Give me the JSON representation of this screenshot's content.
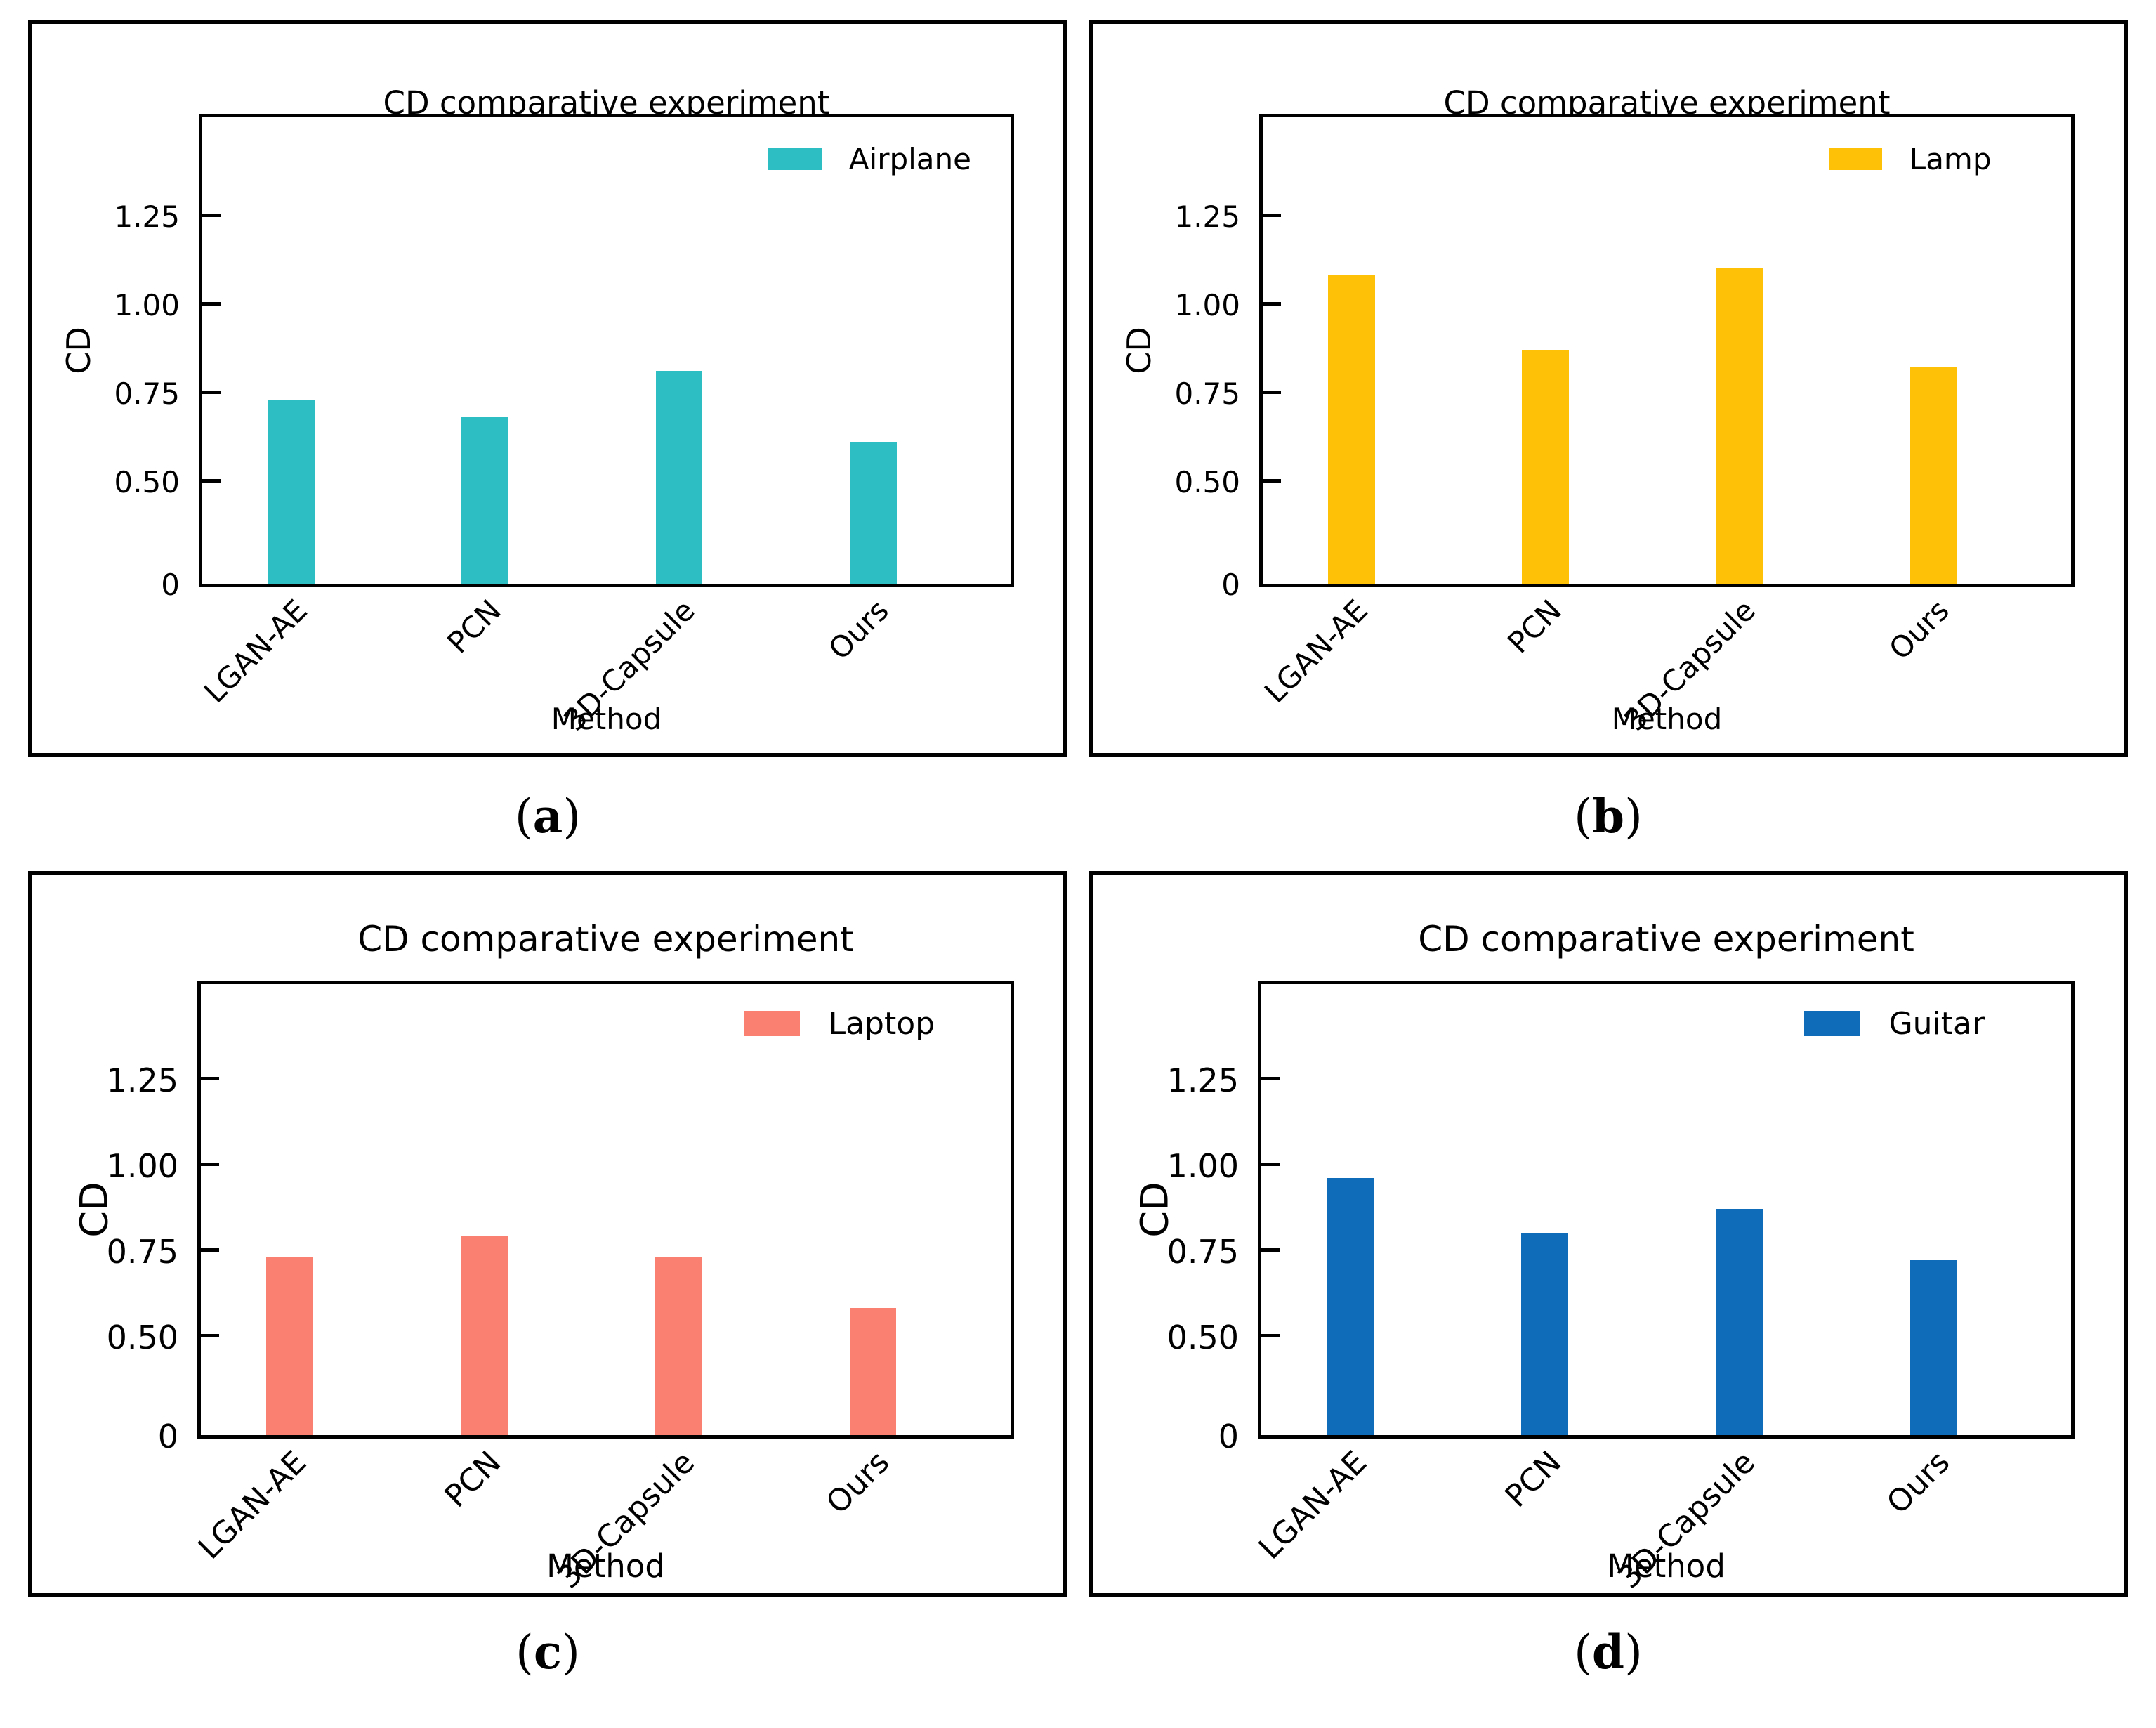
{
  "figure": {
    "caption_open": "(",
    "caption_close": ")"
  },
  "chart_data": [
    {
      "type": "bar",
      "title": "CD comparative experiment",
      "xlabel": "Method",
      "ylabel": "CD",
      "categories": [
        "LGAN-AE",
        "PCN",
        "3D-Capsule",
        "Ours"
      ],
      "values": [
        0.73,
        0.68,
        0.81,
        0.61
      ],
      "legend": "Airplane",
      "bar_color": "#2CBEC3",
      "yticks": [
        {
          "label": "0",
          "value": 0
        },
        {
          "label": "0.50",
          "value": 0.5
        },
        {
          "label": "0.75",
          "value": 0.75
        },
        {
          "label": "1.00",
          "value": 1.0
        },
        {
          "label": "1.25",
          "value": 1.25
        }
      ],
      "ylim": [
        0,
        1.5
      ],
      "legend_position": "upper right",
      "grid": false,
      "caption": "a"
    },
    {
      "type": "bar",
      "title": "CD comparative experiment",
      "xlabel": "Method",
      "ylabel": "CD",
      "categories": [
        "LGAN-AE",
        "PCN",
        "3D-Capsule",
        "Ours"
      ],
      "values": [
        1.08,
        0.87,
        1.1,
        0.82
      ],
      "legend": "Lamp",
      "bar_color": "#FFC107",
      "yticks": [
        {
          "label": "0",
          "value": 0
        },
        {
          "label": "0.50",
          "value": 0.5
        },
        {
          "label": "0.75",
          "value": 0.75
        },
        {
          "label": "1.00",
          "value": 1.0
        },
        {
          "label": "1.25",
          "value": 1.25
        }
      ],
      "ylim": [
        0,
        1.5
      ],
      "legend_position": "upper right",
      "grid": false,
      "caption": "b"
    },
    {
      "type": "bar",
      "title": "CD comparative experiment",
      "xlabel": "Method",
      "ylabel": "CD",
      "categories": [
        "LGAN-AE",
        "PCN",
        "3D-Capsule",
        "Ours"
      ],
      "values": [
        0.73,
        0.79,
        0.73,
        0.58
      ],
      "legend": "Laptop",
      "bar_color": "#FA8072",
      "yticks": [
        {
          "label": "0",
          "value": 0
        },
        {
          "label": "0.50",
          "value": 0.5
        },
        {
          "label": "0.75",
          "value": 0.75
        },
        {
          "label": "1.00",
          "value": 1.0
        },
        {
          "label": "1.25",
          "value": 1.25
        }
      ],
      "ylim": [
        0,
        1.5
      ],
      "legend_position": "upper right",
      "grid": false,
      "caption": "c"
    },
    {
      "type": "bar",
      "title": "CD comparative experiment",
      "xlabel": "Method",
      "ylabel": "CD",
      "categories": [
        "LGAN-AE",
        "PCN",
        "3D-Capsule",
        "Ours"
      ],
      "values": [
        0.96,
        0.8,
        0.87,
        0.72
      ],
      "legend": "Guitar",
      "bar_color": "#0F6CB8",
      "yticks": [
        {
          "label": "0",
          "value": 0
        },
        {
          "label": "0.50",
          "value": 0.5
        },
        {
          "label": "0.75",
          "value": 0.75
        },
        {
          "label": "1.00",
          "value": 1.0
        },
        {
          "label": "1.25",
          "value": 1.25
        }
      ],
      "ylim": [
        0,
        1.5
      ],
      "legend_position": "upper right",
      "grid": false,
      "caption": "d"
    }
  ]
}
